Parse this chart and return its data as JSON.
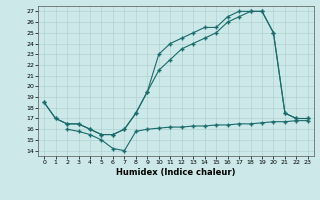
{
  "xlabel": "Humidex (Indice chaleur)",
  "bg_color": "#cce8e8",
  "line_color": "#1a6b6b",
  "xlim": [
    -0.5,
    23.5
  ],
  "ylim": [
    13.5,
    27.5
  ],
  "xticks": [
    0,
    1,
    2,
    3,
    4,
    5,
    6,
    7,
    8,
    9,
    10,
    11,
    12,
    13,
    14,
    15,
    16,
    17,
    18,
    19,
    20,
    21,
    22,
    23
  ],
  "yticks": [
    14,
    15,
    16,
    17,
    18,
    19,
    20,
    21,
    22,
    23,
    24,
    25,
    26,
    27
  ],
  "line1_x": [
    0,
    1,
    2,
    3,
    4,
    5,
    6,
    7,
    8,
    9,
    10,
    11,
    12,
    13,
    14,
    15,
    16,
    17,
    18,
    19,
    20,
    21,
    22,
    23
  ],
  "line1_y": [
    18.5,
    17.0,
    16.5,
    16.5,
    16.0,
    15.5,
    15.5,
    16.0,
    17.5,
    19.5,
    21.5,
    22.5,
    23.5,
    24.0,
    24.5,
    25.0,
    26.0,
    26.5,
    27.0,
    27.0,
    25.0,
    17.5,
    17.0,
    17.0
  ],
  "line2_x": [
    0,
    1,
    2,
    3,
    4,
    5,
    6,
    7,
    8,
    9,
    10,
    11,
    12,
    13,
    14,
    15,
    16,
    17,
    18,
    19,
    20,
    21,
    22,
    23
  ],
  "line2_y": [
    18.5,
    17.0,
    16.5,
    16.5,
    16.0,
    15.5,
    15.5,
    16.0,
    17.5,
    19.5,
    23.0,
    24.0,
    24.5,
    25.0,
    25.5,
    25.5,
    26.5,
    27.0,
    27.0,
    27.0,
    25.0,
    17.5,
    17.0,
    17.0
  ],
  "line3_x": [
    2,
    3,
    4,
    5,
    6,
    7,
    8,
    9,
    10,
    11,
    12,
    13,
    14,
    15,
    16,
    17,
    18,
    19,
    20,
    21,
    22,
    23
  ],
  "line3_y": [
    16.0,
    15.8,
    15.5,
    15.0,
    14.2,
    14.0,
    15.8,
    16.0,
    16.1,
    16.2,
    16.2,
    16.3,
    16.3,
    16.4,
    16.4,
    16.5,
    16.5,
    16.6,
    16.7,
    16.7,
    16.8,
    16.8
  ]
}
